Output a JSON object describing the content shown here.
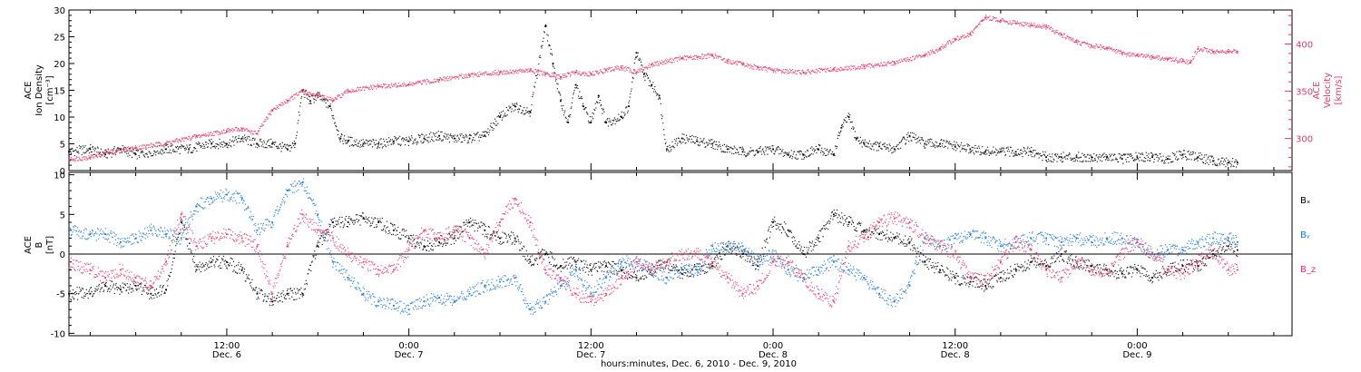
{
  "colors": {
    "axis": "#000000",
    "density": "#000000",
    "velocity": "#e8366a",
    "bx": "#000000",
    "by": "#1f77d4",
    "bz": "#e8366a"
  },
  "xlabel": "hours:minutes, Dec.  6, 2010 - Dec.  9, 2010",
  "chart_data": [
    {
      "type": "scatter",
      "title": "",
      "x_unit": "hours since 2010-12-06 00:00",
      "xlim": [
        1.6,
        82.2
      ],
      "x_ticks": [
        {
          "x": 12,
          "label": "12:00",
          "sub": "Dec. 6"
        },
        {
          "x": 24,
          "label": "0:00",
          "sub": "Dec. 7"
        },
        {
          "x": 36,
          "label": "12:00",
          "sub": "Dec. 7"
        },
        {
          "x": 48,
          "label": "0:00",
          "sub": "Dec. 8"
        },
        {
          "x": 60,
          "label": "12:00",
          "sub": "Dec. 8"
        },
        {
          "x": 72,
          "label": "0:00",
          "sub": "Dec. 9"
        }
      ],
      "ylabel_left": [
        "ACE",
        "Ion Density",
        "[cm⁻³]"
      ],
      "ylim_left": [
        0,
        30
      ],
      "yticks_left": [
        "0",
        "5",
        "10",
        "15",
        "20",
        "25",
        "30"
      ],
      "ylabel_right": [
        "ACE",
        "Velocity",
        "[km/s]"
      ],
      "ylim_right": [
        266,
        436
      ],
      "yticks_right": [
        "300",
        "350",
        "400"
      ],
      "series": [
        {
          "axis": "left",
          "color": "#000000",
          "x": [
            1.6,
            3,
            4,
            5,
            6,
            8,
            9.5,
            11,
            12,
            13,
            14,
            15,
            16,
            16.5,
            17,
            17.5,
            18,
            18.8,
            19.5,
            20,
            21,
            22,
            23,
            24,
            25,
            26,
            27,
            28,
            29,
            30,
            31,
            32,
            33,
            33.5,
            34,
            34.5,
            35,
            35.5,
            36,
            36.5,
            37,
            38,
            38.5,
            39,
            39.5,
            40,
            40.5,
            41,
            42,
            43,
            44,
            45,
            46,
            47,
            48,
            49,
            50,
            51,
            52,
            52.5,
            53,
            53.5,
            54,
            55,
            56,
            57,
            58,
            59,
            60,
            61,
            62,
            63,
            64,
            65,
            66,
            67,
            68,
            69,
            70,
            71,
            72,
            73,
            74,
            75,
            76,
            77,
            78,
            78.6
          ],
          "y": [
            3.5,
            4,
            3,
            4,
            3,
            4,
            4,
            5,
            5,
            6,
            5,
            5,
            4,
            5,
            15,
            13,
            14,
            12,
            6,
            5.5,
            5,
            5,
            5.5,
            5.5,
            6,
            6.5,
            6,
            6,
            6.5,
            10,
            12,
            11,
            27,
            20,
            13,
            9,
            16,
            12,
            9,
            14,
            9,
            10,
            12,
            22,
            18,
            16,
            14,
            4,
            6,
            5.5,
            5,
            4,
            3.5,
            3.5,
            4,
            3,
            3,
            4,
            3,
            8,
            10,
            6,
            5,
            4.5,
            4,
            6.5,
            5,
            5,
            4.5,
            4,
            3.5,
            3.5,
            3.5,
            3.5,
            2.5,
            2.5,
            2.5,
            2.5,
            2.5,
            2.2,
            2.5,
            2.5,
            2.2,
            3,
            2.5,
            1.8,
            1.5,
            1.5
          ]
        },
        {
          "axis": "right",
          "color": "#e8366a",
          "x": [
            1.6,
            3,
            4,
            6,
            8,
            10,
            12,
            13,
            14,
            15,
            16,
            17,
            18,
            19,
            20,
            22,
            24,
            26,
            28,
            30,
            32,
            33,
            34,
            35,
            36,
            37,
            38,
            39,
            40,
            42,
            43,
            44,
            45,
            46,
            47,
            48,
            50,
            52,
            54,
            56,
            58,
            59,
            60,
            61,
            61.8,
            62,
            63,
            64,
            65,
            66,
            67,
            68,
            69,
            70,
            71,
            72,
            73,
            74,
            75,
            75.5,
            76,
            77,
            78,
            78.6
          ],
          "y": [
            278,
            280,
            285,
            290,
            295,
            302,
            308,
            310,
            305,
            330,
            340,
            350,
            345,
            340,
            350,
            355,
            357,
            362,
            367,
            370,
            372,
            368,
            365,
            370,
            368,
            372,
            375,
            370,
            378,
            385,
            386,
            388,
            382,
            378,
            375,
            372,
            370,
            373,
            376,
            380,
            388,
            395,
            405,
            410,
            425,
            428,
            425,
            422,
            420,
            418,
            410,
            402,
            398,
            396,
            390,
            388,
            386,
            384,
            382,
            380,
            395,
            392,
            392,
            392
          ]
        }
      ]
    },
    {
      "type": "scatter",
      "title": "",
      "x_unit": "hours since 2010-12-06 00:00",
      "xlim": [
        1.6,
        82.2
      ],
      "ylabel_left": [
        "ACE",
        "B",
        "[nT]"
      ],
      "ylim": [
        -10.3,
        10.3
      ],
      "yticks": [
        "-10",
        "-5",
        "0",
        "5",
        "10"
      ],
      "zero_line": true,
      "legend": [
        "Bₓ",
        "Bᵧ",
        "B_z"
      ],
      "legend_position": "right",
      "series": [
        {
          "name": "Bₓ",
          "color": "#000000",
          "x": [
            1.6,
            3,
            4,
            5,
            6,
            7,
            8,
            9,
            10,
            11,
            12,
            13,
            14,
            15,
            16,
            17,
            18,
            19,
            20,
            21,
            22,
            23,
            24,
            25,
            26,
            27,
            28,
            29,
            30,
            31,
            32,
            33,
            34,
            35,
            36,
            37,
            38,
            39,
            40,
            41,
            42,
            43,
            44,
            45,
            46,
            47,
            48,
            49,
            50,
            51,
            52,
            53,
            54,
            55,
            56,
            57,
            58,
            59,
            60,
            61,
            62,
            63,
            64,
            65,
            66,
            67,
            68,
            69,
            70,
            71,
            72,
            73,
            74,
            75,
            76,
            77,
            78,
            78.6
          ],
          "y": [
            -5,
            -5,
            -4,
            -4.5,
            -4,
            -5,
            -4.5,
            4,
            -2,
            -1,
            -1,
            -2,
            -5,
            -6,
            -5,
            -5,
            1,
            4,
            4,
            4.5,
            4,
            3,
            2,
            1,
            1.5,
            2,
            4,
            3,
            2,
            2,
            -1,
            0,
            -1.5,
            -1,
            -2,
            -1.5,
            -2,
            -3,
            -2,
            -1,
            -2.5,
            -2,
            -1.5,
            1,
            0,
            -1.5,
            4,
            3,
            0,
            2,
            5,
            4,
            3,
            2.5,
            2,
            1.5,
            -1,
            -2,
            -3,
            -3.5,
            -4,
            -3,
            -2,
            -1,
            -1.5,
            0,
            -1,
            -1.5,
            -2,
            -2.5,
            -2,
            -3,
            -2,
            -1.5,
            -1.5,
            0,
            1,
            0.5
          ]
        },
        {
          "name": "Bᵧ",
          "color": "#1f77d4",
          "x": [
            1.6,
            3,
            4,
            5,
            6,
            7,
            8,
            9,
            10,
            11,
            12,
            13,
            14,
            15,
            16,
            17,
            18,
            19,
            20,
            21,
            22,
            23,
            24,
            25,
            26,
            27,
            28,
            29,
            30,
            31,
            32,
            33,
            34,
            35,
            36,
            37,
            38,
            39,
            40,
            41,
            42,
            43,
            44,
            45,
            46,
            47,
            48,
            49,
            50,
            51,
            52,
            53,
            54,
            55,
            56,
            57,
            58,
            59,
            60,
            61,
            62,
            63,
            64,
            65,
            66,
            67,
            68,
            69,
            70,
            71,
            72,
            73,
            74,
            75,
            76,
            77,
            78,
            78.6
          ],
          "y": [
            3,
            2.5,
            2.5,
            1.5,
            2,
            3,
            2.5,
            2,
            6,
            7,
            7.5,
            7,
            3,
            4,
            8,
            9,
            5,
            -1,
            -3,
            -5,
            -6,
            -6.5,
            -7,
            -6,
            -5.5,
            -6,
            -5,
            -4,
            -3.5,
            -3,
            -7,
            -6,
            -4,
            -2,
            -5,
            -3,
            -1,
            -1,
            -2,
            -3,
            -2,
            -2,
            1,
            1,
            1,
            -1,
            0,
            -2,
            -3,
            -2,
            -1,
            -2,
            -3,
            -5,
            -6,
            -4,
            2,
            1,
            2,
            2.5,
            2,
            1,
            1.5,
            2,
            2,
            1.5,
            2,
            1.5,
            2,
            2,
            1.5,
            0,
            0.5,
            0.5,
            1.5,
            2,
            2,
            1.5
          ]
        },
        {
          "name": "B_z",
          "color": "#e8366a",
          "x": [
            1.6,
            3,
            4,
            5,
            6,
            7,
            8,
            9,
            10,
            11,
            12,
            13,
            14,
            15,
            16,
            17,
            18,
            19,
            20,
            21,
            22,
            23,
            24,
            25,
            26,
            27,
            28,
            29,
            30,
            31,
            32,
            33,
            34,
            35,
            36,
            37,
            38,
            39,
            40,
            41,
            42,
            43,
            44,
            45,
            46,
            47,
            48,
            49,
            50,
            51,
            52,
            53,
            54,
            55,
            56,
            57,
            58,
            59,
            60,
            61,
            62,
            63,
            64,
            65,
            66,
            67,
            68,
            69,
            70,
            71,
            72,
            73,
            74,
            75,
            76,
            77,
            78,
            78.6
          ],
          "y": [
            -1,
            -2,
            -3,
            -2,
            -3,
            -4,
            -1,
            5,
            1,
            2,
            2.5,
            2,
            1,
            -5,
            1,
            5,
            3,
            2,
            0,
            -1,
            -2,
            -2,
            0.5,
            3,
            2,
            3,
            2,
            0,
            4,
            7,
            4,
            -2,
            -3,
            -5,
            -6,
            -5,
            -3,
            -1,
            -2,
            -1,
            0,
            0,
            -1,
            -3,
            -5,
            -4,
            -1,
            -1,
            -3,
            -5,
            -6,
            1,
            2,
            4,
            4.5,
            4,
            2,
            1,
            0,
            -3,
            -3.5,
            -1,
            1.5,
            0.5,
            -2,
            -3,
            -1,
            -2,
            -2.5,
            0,
            1.5,
            0,
            -2,
            -2.5,
            -1,
            0.5,
            -2,
            -2
          ]
        }
      ]
    }
  ]
}
